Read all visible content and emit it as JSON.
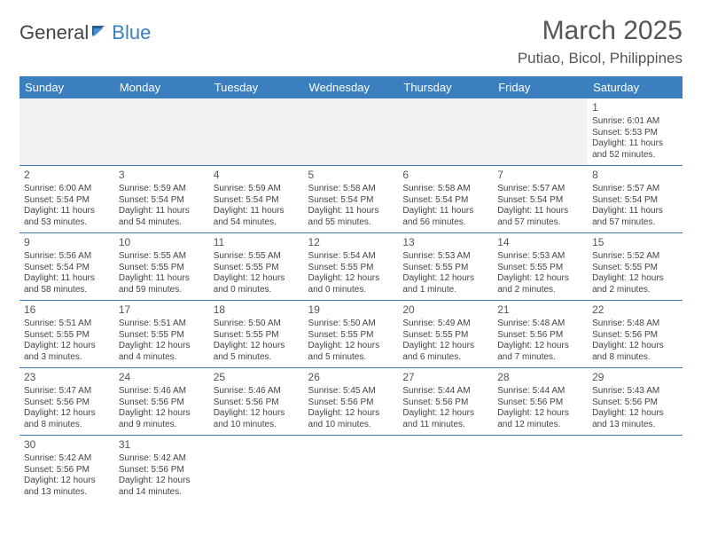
{
  "logo": {
    "text1": "General",
    "text2": "Blue"
  },
  "title": "March 2025",
  "location": "Putiao, Bicol, Philippines",
  "colors": {
    "header_bg": "#3b7fbf",
    "header_text": "#ffffff",
    "border": "#3b7fbf",
    "body_text": "#444444",
    "title_text": "#555555",
    "background": "#ffffff",
    "first_row_empty_bg": "#f2f2f2"
  },
  "weekdays": [
    "Sunday",
    "Monday",
    "Tuesday",
    "Wednesday",
    "Thursday",
    "Friday",
    "Saturday"
  ],
  "weeks": [
    [
      null,
      null,
      null,
      null,
      null,
      null,
      {
        "d": "1",
        "sr": "Sunrise: 6:01 AM",
        "ss": "Sunset: 5:53 PM",
        "dl": "Daylight: 11 hours and 52 minutes."
      }
    ],
    [
      {
        "d": "2",
        "sr": "Sunrise: 6:00 AM",
        "ss": "Sunset: 5:54 PM",
        "dl": "Daylight: 11 hours and 53 minutes."
      },
      {
        "d": "3",
        "sr": "Sunrise: 5:59 AM",
        "ss": "Sunset: 5:54 PM",
        "dl": "Daylight: 11 hours and 54 minutes."
      },
      {
        "d": "4",
        "sr": "Sunrise: 5:59 AM",
        "ss": "Sunset: 5:54 PM",
        "dl": "Daylight: 11 hours and 54 minutes."
      },
      {
        "d": "5",
        "sr": "Sunrise: 5:58 AM",
        "ss": "Sunset: 5:54 PM",
        "dl": "Daylight: 11 hours and 55 minutes."
      },
      {
        "d": "6",
        "sr": "Sunrise: 5:58 AM",
        "ss": "Sunset: 5:54 PM",
        "dl": "Daylight: 11 hours and 56 minutes."
      },
      {
        "d": "7",
        "sr": "Sunrise: 5:57 AM",
        "ss": "Sunset: 5:54 PM",
        "dl": "Daylight: 11 hours and 57 minutes."
      },
      {
        "d": "8",
        "sr": "Sunrise: 5:57 AM",
        "ss": "Sunset: 5:54 PM",
        "dl": "Daylight: 11 hours and 57 minutes."
      }
    ],
    [
      {
        "d": "9",
        "sr": "Sunrise: 5:56 AM",
        "ss": "Sunset: 5:54 PM",
        "dl": "Daylight: 11 hours and 58 minutes."
      },
      {
        "d": "10",
        "sr": "Sunrise: 5:55 AM",
        "ss": "Sunset: 5:55 PM",
        "dl": "Daylight: 11 hours and 59 minutes."
      },
      {
        "d": "11",
        "sr": "Sunrise: 5:55 AM",
        "ss": "Sunset: 5:55 PM",
        "dl": "Daylight: 12 hours and 0 minutes."
      },
      {
        "d": "12",
        "sr": "Sunrise: 5:54 AM",
        "ss": "Sunset: 5:55 PM",
        "dl": "Daylight: 12 hours and 0 minutes."
      },
      {
        "d": "13",
        "sr": "Sunrise: 5:53 AM",
        "ss": "Sunset: 5:55 PM",
        "dl": "Daylight: 12 hours and 1 minute."
      },
      {
        "d": "14",
        "sr": "Sunrise: 5:53 AM",
        "ss": "Sunset: 5:55 PM",
        "dl": "Daylight: 12 hours and 2 minutes."
      },
      {
        "d": "15",
        "sr": "Sunrise: 5:52 AM",
        "ss": "Sunset: 5:55 PM",
        "dl": "Daylight: 12 hours and 2 minutes."
      }
    ],
    [
      {
        "d": "16",
        "sr": "Sunrise: 5:51 AM",
        "ss": "Sunset: 5:55 PM",
        "dl": "Daylight: 12 hours and 3 minutes."
      },
      {
        "d": "17",
        "sr": "Sunrise: 5:51 AM",
        "ss": "Sunset: 5:55 PM",
        "dl": "Daylight: 12 hours and 4 minutes."
      },
      {
        "d": "18",
        "sr": "Sunrise: 5:50 AM",
        "ss": "Sunset: 5:55 PM",
        "dl": "Daylight: 12 hours and 5 minutes."
      },
      {
        "d": "19",
        "sr": "Sunrise: 5:50 AM",
        "ss": "Sunset: 5:55 PM",
        "dl": "Daylight: 12 hours and 5 minutes."
      },
      {
        "d": "20",
        "sr": "Sunrise: 5:49 AM",
        "ss": "Sunset: 5:55 PM",
        "dl": "Daylight: 12 hours and 6 minutes."
      },
      {
        "d": "21",
        "sr": "Sunrise: 5:48 AM",
        "ss": "Sunset: 5:56 PM",
        "dl": "Daylight: 12 hours and 7 minutes."
      },
      {
        "d": "22",
        "sr": "Sunrise: 5:48 AM",
        "ss": "Sunset: 5:56 PM",
        "dl": "Daylight: 12 hours and 8 minutes."
      }
    ],
    [
      {
        "d": "23",
        "sr": "Sunrise: 5:47 AM",
        "ss": "Sunset: 5:56 PM",
        "dl": "Daylight: 12 hours and 8 minutes."
      },
      {
        "d": "24",
        "sr": "Sunrise: 5:46 AM",
        "ss": "Sunset: 5:56 PM",
        "dl": "Daylight: 12 hours and 9 minutes."
      },
      {
        "d": "25",
        "sr": "Sunrise: 5:46 AM",
        "ss": "Sunset: 5:56 PM",
        "dl": "Daylight: 12 hours and 10 minutes."
      },
      {
        "d": "26",
        "sr": "Sunrise: 5:45 AM",
        "ss": "Sunset: 5:56 PM",
        "dl": "Daylight: 12 hours and 10 minutes."
      },
      {
        "d": "27",
        "sr": "Sunrise: 5:44 AM",
        "ss": "Sunset: 5:56 PM",
        "dl": "Daylight: 12 hours and 11 minutes."
      },
      {
        "d": "28",
        "sr": "Sunrise: 5:44 AM",
        "ss": "Sunset: 5:56 PM",
        "dl": "Daylight: 12 hours and 12 minutes."
      },
      {
        "d": "29",
        "sr": "Sunrise: 5:43 AM",
        "ss": "Sunset: 5:56 PM",
        "dl": "Daylight: 12 hours and 13 minutes."
      }
    ],
    [
      {
        "d": "30",
        "sr": "Sunrise: 5:42 AM",
        "ss": "Sunset: 5:56 PM",
        "dl": "Daylight: 12 hours and 13 minutes."
      },
      {
        "d": "31",
        "sr": "Sunrise: 5:42 AM",
        "ss": "Sunset: 5:56 PM",
        "dl": "Daylight: 12 hours and 14 minutes."
      },
      null,
      null,
      null,
      null,
      null
    ]
  ]
}
